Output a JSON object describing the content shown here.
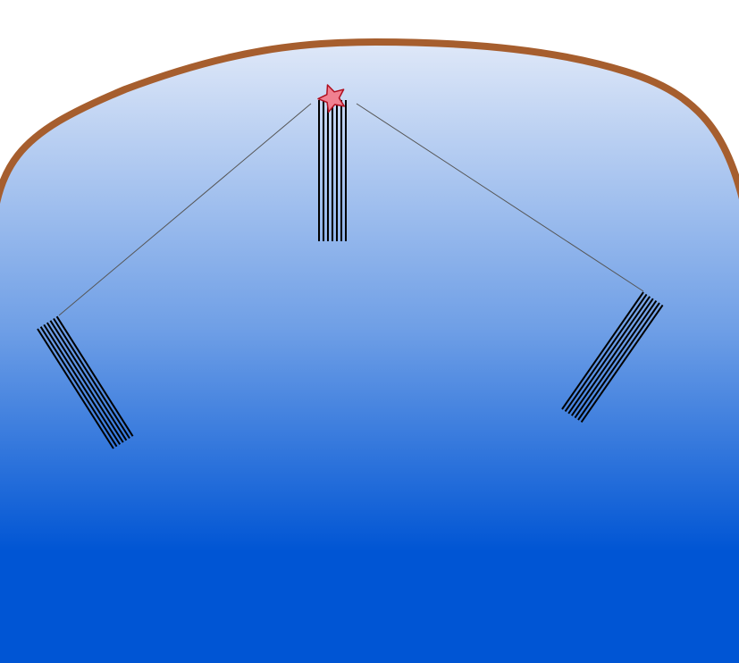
{
  "scene": {
    "type": "top-down-table",
    "colors": {
      "rim": "#a65e2e",
      "felt_top": "#dfe8f8",
      "felt_mid": "#6f9fe6",
      "felt_bottom": "#0055d4",
      "background": "#ffffff",
      "ball_fill": "#f08090",
      "ball_stroke": "#b01020",
      "rack_line": "#000000",
      "guide_line": "#555555"
    },
    "target": {
      "icon": "star-icon"
    },
    "racks": [
      {
        "name": "rack-left",
        "icon": "stick-bundle-icon",
        "count": 7
      },
      {
        "name": "rack-center",
        "icon": "stick-bundle-icon",
        "count": 7
      },
      {
        "name": "rack-right",
        "icon": "stick-bundle-icon",
        "count": 7
      }
    ],
    "guides": [
      {
        "name": "guide-left"
      },
      {
        "name": "guide-right"
      }
    ]
  }
}
